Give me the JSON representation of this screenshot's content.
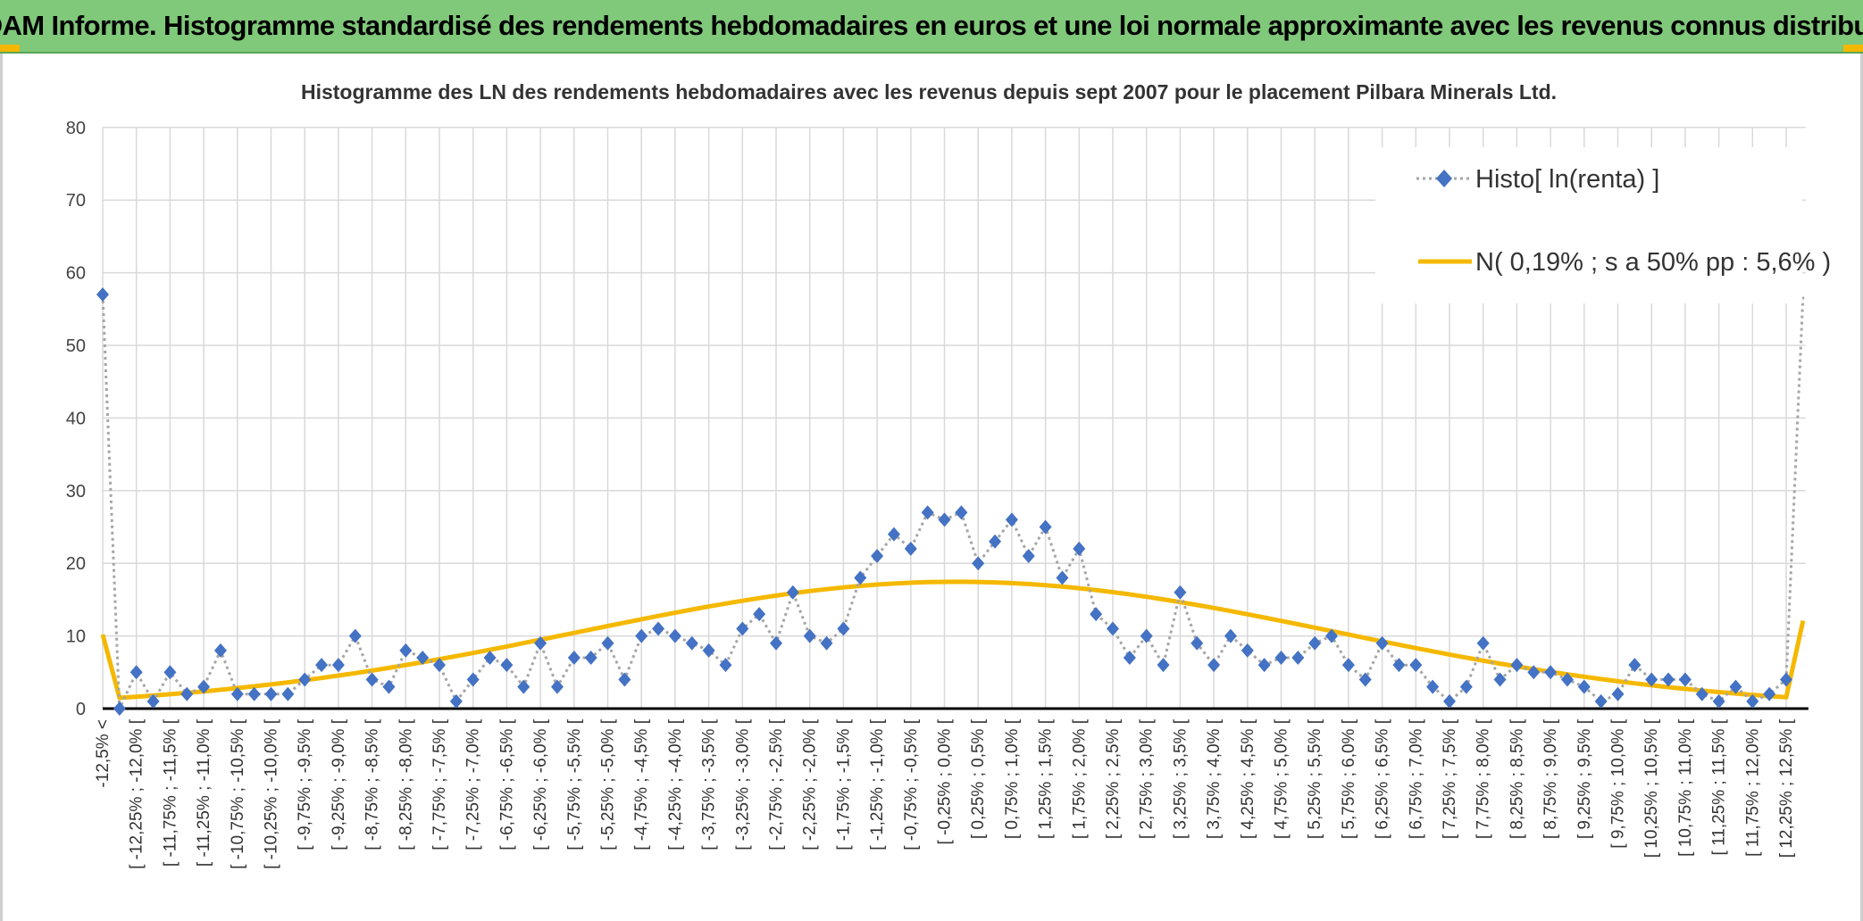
{
  "banner": {
    "title": "ADAM Informe. Histogramme standardisé des rendements hebdomadaires en euros et une loi normale approximante avec les revenus connus distribués"
  },
  "chart_data": {
    "type": "line",
    "title": "Histogramme des LN des rendements hebdomadaires avec les revenus depuis sept 2007 pour le placement Pilbara Minerals Ltd.",
    "xlabel": "",
    "ylabel": "",
    "ylim": [
      0,
      80
    ],
    "yticks": [
      "0",
      "10",
      "20",
      "30",
      "40",
      "50",
      "60",
      "70",
      "80"
    ],
    "grid": true,
    "legend_position": "top-right",
    "categories": [
      "-12,5% <",
      "[ -12,25% ; -12,0% [",
      "[ -11,75% ; -11,5% [",
      "[ -11,25% ; -11,0% [",
      "[ -10,75% ; -10,5% [",
      "[ -10,25% ; -10,0% [",
      "[ -9,75% ; -9,5% [",
      "[ -9,25% ; -9,0% [",
      "[ -8,75% ; -8,5% [",
      "[ -8,25% ; -8,0% [",
      "[ -7,75% ; -7,5% [",
      "[ -7,25% ; -7,0% [",
      "[ -6,75% ; -6,5% [",
      "[ -6,25% ; -6,0% [",
      "[ -5,75% ; -5,5% [",
      "[ -5,25% ; -5,0% [",
      "[ -4,75% ; -4,5% [",
      "[ -4,25% ; -4,0% [",
      "[ -3,75% ; -3,5% [",
      "[ -3,25% ; -3,0% [",
      "[ -2,75% ; -2,5% [",
      "[ -2,25% ; -2,0% [",
      "[ -1,75% ; -1,5% [",
      "[ -1,25% ; -1,0% [",
      "[ -0,75% ; -0,5% [",
      "[ -0,25% ; 0,0% [",
      "[ 0,25% ; 0,5% [",
      "[ 0,75% ; 1,0% [",
      "[ 1,25% ; 1,5% [",
      "[ 1,75% ; 2,0% [",
      "[ 2,25% ; 2,5% [",
      "[ 2,75% ; 3,0% [",
      "[ 3,25% ; 3,5% [",
      "[ 3,75% ; 4,0% [",
      "[ 4,25% ; 4,5% [",
      "[ 4,75% ; 5,0% [",
      "[ 5,25% ; 5,5% [",
      "[ 5,75% ; 6,0% [",
      "[ 6,25% ; 6,5% [",
      "[ 6,75% ; 7,0% [",
      "[ 7,25% ; 7,5% [",
      "[ 7,75% ; 8,0% [",
      "[ 8,25% ; 8,5% [",
      "[ 8,75% ; 9,0% [",
      "[ 9,25% ; 9,5% [",
      "[ 9,75% ; 10,0% [",
      "[ 10,25% ; 10,5% [",
      "[ 10,75% ; 11,0% [",
      "[ 11,25% ; 11,5% [",
      "[ 11,75% ; 12,0% [",
      "[ 12,25% ; 12,5% ["
    ],
    "series": [
      {
        "name": "Histo[ ln(renta) ]",
        "color": "#4472c4",
        "style": "dotted line with diamond markers",
        "x": [
          -12.5,
          -12.25,
          -12,
          -11.75,
          -11.5,
          -11.25,
          -11,
          -10.75,
          -10.5,
          -10.25,
          -10,
          -9.75,
          -9.5,
          -9.25,
          -9,
          -8.75,
          -8.5,
          -8.25,
          -8,
          -7.75,
          -7.5,
          -7.25,
          -7,
          -6.75,
          -6.5,
          -6.25,
          -6,
          -5.75,
          -5.5,
          -5.25,
          -5,
          -4.75,
          -4.5,
          -4.25,
          -4,
          -3.75,
          -3.5,
          -3.25,
          -3,
          -2.75,
          -2.5,
          -2.25,
          -2,
          -1.75,
          -1.5,
          -1.25,
          -1,
          -0.75,
          -0.5,
          -0.25,
          0,
          0.25,
          0.5,
          0.75,
          1,
          1.25,
          1.5,
          1.75,
          2,
          2.25,
          2.5,
          2.75,
          3,
          3.25,
          3.5,
          3.75,
          4,
          4.25,
          4.5,
          4.75,
          5,
          5.25,
          5.5,
          5.75,
          6,
          6.25,
          6.5,
          6.75,
          7,
          7.25,
          7.5,
          7.75,
          8,
          8.25,
          8.5,
          8.75,
          9,
          9.25,
          9.5,
          9.75,
          10,
          10.25,
          10.5,
          10.75,
          11,
          11.25,
          11.5,
          11.75,
          12,
          12.25,
          12.5,
          12.75
        ],
        "values": [
          57,
          0,
          5,
          1,
          5,
          2,
          3,
          8,
          2,
          2,
          2,
          2,
          4,
          6,
          6,
          10,
          4,
          3,
          8,
          7,
          6,
          1,
          4,
          7,
          6,
          3,
          9,
          3,
          7,
          7,
          9,
          4,
          10,
          11,
          10,
          9,
          8,
          6,
          11,
          13,
          9,
          16,
          10,
          9,
          11,
          18,
          21,
          24,
          22,
          27,
          26,
          27,
          20,
          23,
          26,
          21,
          25,
          18,
          22,
          13,
          11,
          7,
          10,
          6,
          16,
          9,
          6,
          10,
          8,
          6,
          7,
          7,
          9,
          10,
          6,
          4,
          9,
          6,
          6,
          3,
          1,
          3,
          9,
          4,
          6,
          5,
          5,
          4,
          3,
          1,
          2,
          6,
          4,
          4,
          4,
          2,
          1,
          3,
          1,
          2,
          4,
          57
        ]
      },
      {
        "name": "N( 0,19% ; s a 50% pp : 5,6% )",
        "color": "#f5b800",
        "style": "thick solid line",
        "mean": 0.19,
        "sd": 5.6,
        "tail_values": [
          10.2,
          12.1
        ],
        "x": [
          -12.5,
          -12.25,
          -12,
          -11.75,
          -11.5,
          -11.25,
          -11,
          -10.75,
          -10.5,
          -10.25,
          -10,
          -9.75,
          -9.5,
          -9.25,
          -9,
          -8.75,
          -8.5,
          -8.25,
          -8,
          -7.75,
          -7.5,
          -7.25,
          -7,
          -6.75,
          -6.5,
          -6.25,
          -6,
          -5.75,
          -5.5,
          -5.25,
          -5,
          -4.75,
          -4.5,
          -4.25,
          -4,
          -3.75,
          -3.5,
          -3.25,
          -3,
          -2.75,
          -2.5,
          -2.25,
          -2,
          -1.75,
          -1.5,
          -1.25,
          -1,
          -0.75,
          -0.5,
          -0.25,
          0,
          0.25,
          0.5,
          0.75,
          1,
          1.25,
          1.5,
          1.75,
          2,
          2.25,
          2.5,
          2.75,
          3,
          3.25,
          3.5,
          3.75,
          4,
          4.25,
          4.5,
          4.75,
          5,
          5.25,
          5.5,
          5.75,
          6,
          6.25,
          6.5,
          6.75,
          7,
          7.25,
          7.5,
          7.75,
          8,
          8.25,
          8.5,
          8.75,
          9,
          9.25,
          9.5,
          9.75,
          10,
          10.25,
          10.5,
          10.75,
          11,
          11.25,
          11.5,
          11.75,
          12,
          12.25,
          12.5,
          12.75
        ]
      }
    ]
  }
}
